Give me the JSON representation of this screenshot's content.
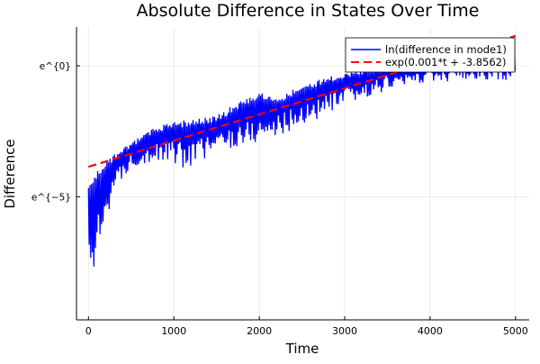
{
  "chart_data": {
    "type": "line",
    "title": "Absolute Difference in States Over Time",
    "xlabel": "Time",
    "ylabel": "Difference",
    "xlim": [
      -140,
      5160
    ],
    "ylim_ln": [
      -9.7,
      1.48
    ],
    "y_scale": "log (natural)",
    "grid": true,
    "legend_placement": "top-right",
    "x_ticks": [
      0,
      1000,
      2000,
      3000,
      4000,
      5000
    ],
    "x_tick_labels": [
      "0",
      "1000",
      "2000",
      "3000",
      "4000",
      "5000"
    ],
    "y_ticks_ln": [
      0,
      -5
    ],
    "y_tick_labels": [
      "e^{0}",
      "e^{−5}"
    ],
    "series": [
      {
        "name": "ln(difference in mode1)",
        "color": "#0000ff",
        "style": "solid",
        "oscillating": true,
        "upper_envelope_ln": [
          [
            0,
            -4.66
          ],
          [
            100,
            -4.0
          ],
          [
            300,
            -3.35
          ],
          [
            500,
            -2.9
          ],
          [
            800,
            -2.3
          ],
          [
            1000,
            -2.15
          ],
          [
            1500,
            -1.9
          ],
          [
            1800,
            -1.28
          ],
          [
            2000,
            -1.0
          ],
          [
            2200,
            -1.2
          ],
          [
            2500,
            -0.76
          ],
          [
            2700,
            -0.5
          ],
          [
            3000,
            -0.24
          ],
          [
            3500,
            0.1
          ],
          [
            4000,
            0.17
          ],
          [
            4500,
            0.28
          ],
          [
            5000,
            0.5
          ]
        ],
        "lower_envelope_ln": [
          [
            0,
            -9.4
          ],
          [
            50,
            -7.9
          ],
          [
            100,
            -8.3
          ],
          [
            150,
            -6.8
          ],
          [
            200,
            -5.9
          ],
          [
            300,
            -4.9
          ],
          [
            400,
            -4.4
          ],
          [
            500,
            -3.86
          ],
          [
            700,
            -3.7
          ],
          [
            1000,
            -3.7
          ],
          [
            1100,
            -4.0
          ],
          [
            1500,
            -3.3
          ],
          [
            2000,
            -3.0
          ],
          [
            2500,
            -2.3
          ],
          [
            3000,
            -1.6
          ],
          [
            3500,
            -0.93
          ],
          [
            4000,
            -0.6
          ],
          [
            4500,
            -0.6
          ],
          [
            5000,
            -0.52
          ]
        ]
      },
      {
        "name": "exp(0.001*t + -3.8562)",
        "color": "#ff0000",
        "style": "dashed",
        "slope": 0.001,
        "intercept": -3.8562,
        "x_range": [
          0,
          5000
        ]
      }
    ]
  }
}
